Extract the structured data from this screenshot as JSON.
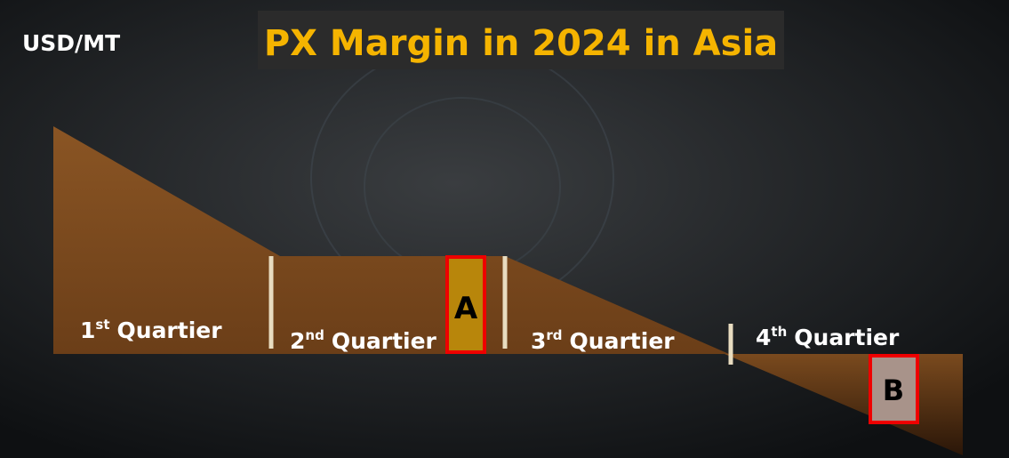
{
  "unit_label": "USD/MT",
  "title": "PX Margin in 2024 in Asia",
  "quarters": [
    {
      "number": "1",
      "suffix": "st",
      "label": "Quartier"
    },
    {
      "number": "2",
      "suffix": "nd",
      "label": "Quartier"
    },
    {
      "number": "3",
      "suffix": "rd",
      "label": "Quartier"
    },
    {
      "number": "4",
      "suffix": "th",
      "label": "Quartier"
    }
  ],
  "markers": [
    "A",
    "B"
  ]
}
